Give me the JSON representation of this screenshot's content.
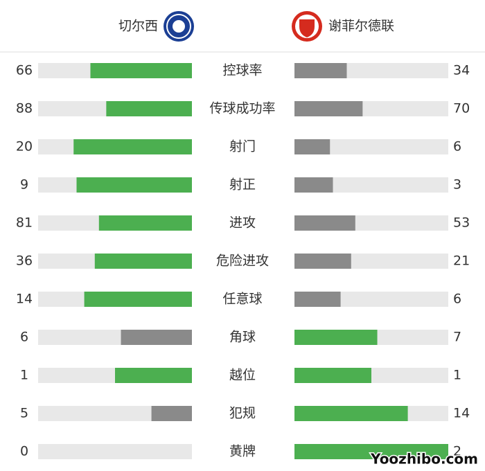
{
  "home": {
    "name": "切尔西"
  },
  "away": {
    "name": "谢菲尔德联"
  },
  "colors": {
    "leading": "#4caf50",
    "trailing": "#8a8a8a",
    "track": "#e8e8e8"
  },
  "stats": [
    {
      "label": "控球率",
      "home": 66,
      "away": 34
    },
    {
      "label": "传球成功率",
      "home": 88,
      "away": 70
    },
    {
      "label": "射门",
      "home": 20,
      "away": 6
    },
    {
      "label": "射正",
      "home": 9,
      "away": 3
    },
    {
      "label": "进攻",
      "home": 81,
      "away": 53
    },
    {
      "label": "危险进攻",
      "home": 36,
      "away": 21
    },
    {
      "label": "任意球",
      "home": 14,
      "away": 6
    },
    {
      "label": "角球",
      "home": 6,
      "away": 7
    },
    {
      "label": "越位",
      "home": 1,
      "away": 1
    },
    {
      "label": "犯规",
      "home": 5,
      "away": 14
    },
    {
      "label": "黄牌",
      "home": 0,
      "away": 2
    }
  ],
  "watermark": "Yoozhibo.com"
}
